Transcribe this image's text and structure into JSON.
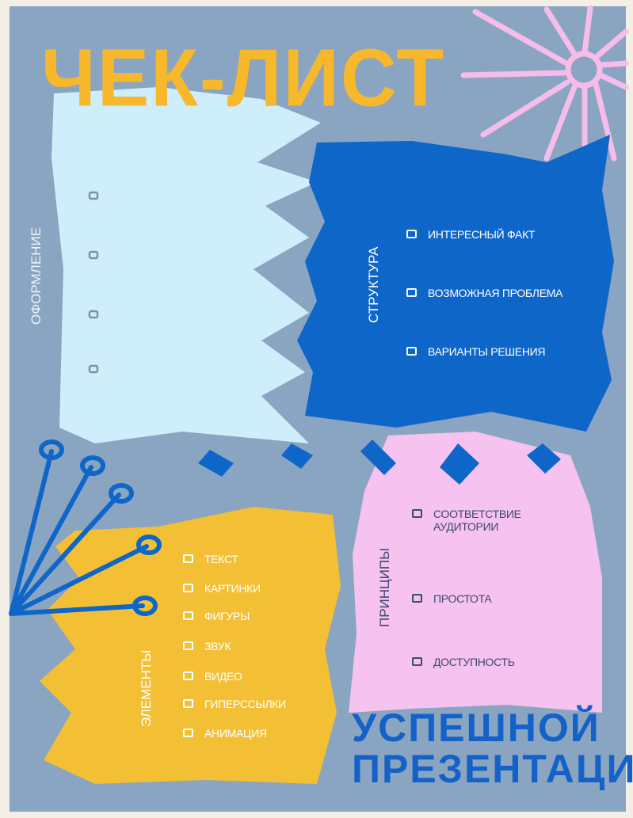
{
  "title": "ЧЕК-ЛИСТ",
  "subtitle": [
    "УСПЕШНОЙ",
    "ПРЕЗЕНТАЦИИ"
  ],
  "sections": [
    {
      "heading": "ОФОРМЛЕНИЕ",
      "items": []
    },
    {
      "heading": "СТРУКТУРА",
      "items": [
        "ИНТЕРЕСНЫЙ ФАКТ",
        "ВОЗМОЖНАЯ ПРОБЛЕМА",
        "ВАРИАНТЫ РЕШЕНИЯ"
      ]
    },
    {
      "heading": "ЭЛЕМЕНТЫ",
      "items": [
        "ТЕКСТ",
        "КАРТИНКИ",
        "ФИГУРЫ",
        "ЗВУК",
        "ВИДЕО",
        "ГИПЕРССЫЛКИ",
        "АНИМАЦИЯ"
      ]
    },
    {
      "heading": "ПРИНЦИПЫ",
      "items": [
        "СООТВЕТСТВИЕ АУДИТОРИИ",
        "ПРОСТОТА",
        "ДОСТУПНОСТЬ"
      ]
    }
  ]
}
